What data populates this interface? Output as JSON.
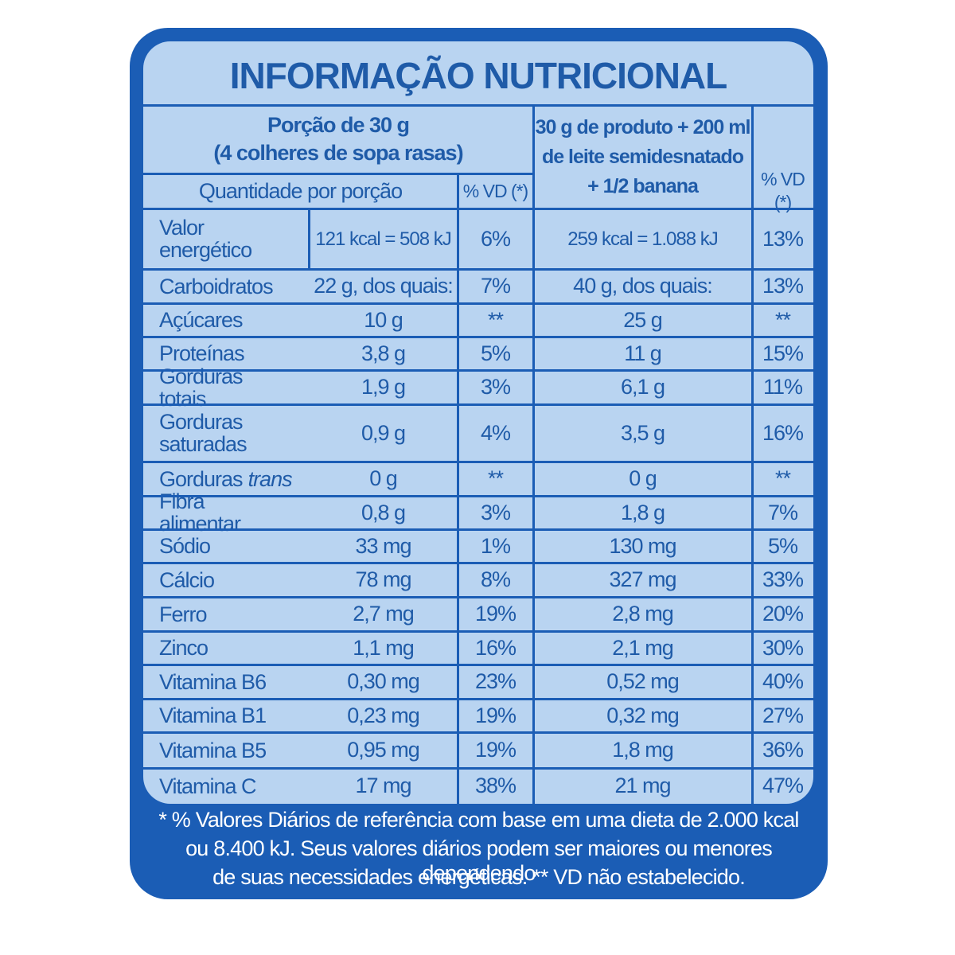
{
  "title": "INFORMAÇÃO NUTRICIONAL",
  "header": {
    "portion_line1": "Porção de 30 g",
    "portion_line2": "(4 colheres de sopa rasas)",
    "quantity": "Quantidade por porção",
    "vd1": "% VD (*)",
    "prepared_line1": "30 g de produto + 200 ml",
    "prepared_line2": "de leite semidesnatado",
    "prepared_line3": "+ 1/2 banana",
    "vd2": "% VD (*)"
  },
  "rows": [
    {
      "name": "Valor energético",
      "qty1": "121 kcal = 508 kJ",
      "vd1": "6%",
      "qty2": "259 kcal = 1.088 kJ",
      "vd2": "13%"
    },
    {
      "name": "Carboidratos",
      "qty1": "22 g, dos quais:",
      "vd1": "7%",
      "qty2": "40 g, dos quais:",
      "vd2": "13%"
    },
    {
      "name": "Açúcares",
      "qty1": "10 g",
      "vd1": "**",
      "qty2": "25 g",
      "vd2": "**"
    },
    {
      "name": "Proteínas",
      "qty1": "3,8 g",
      "vd1": "5%",
      "qty2": "11 g",
      "vd2": "15%"
    },
    {
      "name": "Gorduras totais",
      "qty1": "1,9 g",
      "vd1": "3%",
      "qty2": "6,1 g",
      "vd2": "11%"
    },
    {
      "name": "Gorduras saturadas",
      "qty1": "0,9 g",
      "vd1": "4%",
      "qty2": "3,5 g",
      "vd2": "16%"
    },
    {
      "name": "Gorduras",
      "name_em": "trans",
      "qty1": "0 g",
      "vd1": "**",
      "qty2": "0 g",
      "vd2": "**"
    },
    {
      "name": "Fibra alimentar",
      "qty1": "0,8 g",
      "vd1": "3%",
      "qty2": "1,8 g",
      "vd2": "7%"
    },
    {
      "name": "Sódio",
      "qty1": "33 mg",
      "vd1": "1%",
      "qty2": "130 mg",
      "vd2": "5%"
    },
    {
      "name": "Cálcio",
      "qty1": "78 mg",
      "vd1": "8%",
      "qty2": "327 mg",
      "vd2": "33%"
    },
    {
      "name": "Ferro",
      "qty1": "2,7 mg",
      "vd1": "19%",
      "qty2": "2,8 mg",
      "vd2": "20%"
    },
    {
      "name": "Zinco",
      "qty1": "1,1 mg",
      "vd1": "16%",
      "qty2": "2,1 mg",
      "vd2": "30%"
    },
    {
      "name": "Vitamina B6",
      "qty1": "0,30 mg",
      "vd1": "23%",
      "qty2": "0,52 mg",
      "vd2": "40%"
    },
    {
      "name": "Vitamina B1",
      "qty1": "0,23 mg",
      "vd1": "19%",
      "qty2": "0,32 mg",
      "vd2": "27%"
    },
    {
      "name": "Vitamina B5",
      "qty1": "0,95 mg",
      "vd1": "19%",
      "qty2": "1,8 mg",
      "vd2": "36%"
    },
    {
      "name": "Vitamina C",
      "qty1": "17 mg",
      "vd1": "38%",
      "qty2": "21 mg",
      "vd2": "47%"
    }
  ],
  "footnote": [
    "* % Valores Diários de referência com base em uma dieta de 2.000 kcal",
    "ou 8.400 kJ. Seus valores diários podem ser maiores ou menores dependendo",
    "de suas necessidades energéticas. ** VD não estabelecido."
  ]
}
